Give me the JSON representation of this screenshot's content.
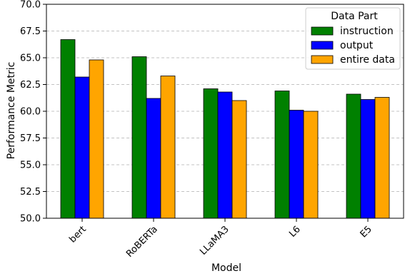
{
  "chart_data": {
    "type": "bar",
    "categories": [
      "bert",
      "RoBERTa",
      "LLaMA3",
      "L6",
      "E5"
    ],
    "series": [
      {
        "name": "instruction",
        "color": "#008000",
        "values": [
          66.7,
          65.1,
          62.1,
          61.9,
          61.6
        ]
      },
      {
        "name": "output",
        "color": "#0000ff",
        "values": [
          63.2,
          61.2,
          61.8,
          60.1,
          61.1
        ]
      },
      {
        "name": "entire data",
        "color": "#ffa500",
        "values": [
          64.8,
          63.3,
          61.0,
          60.0,
          61.3
        ]
      }
    ],
    "xlabel": "Model",
    "ylabel": "Performance Metric",
    "ylim": [
      50.0,
      70.0
    ],
    "yticks": [
      "50.0",
      "52.5",
      "55.0",
      "57.5",
      "60.0",
      "62.5",
      "65.0",
      "67.5",
      "70.0"
    ],
    "legend": {
      "title": "Data Part",
      "placement": "top-right"
    },
    "grid": "y-dashed"
  }
}
